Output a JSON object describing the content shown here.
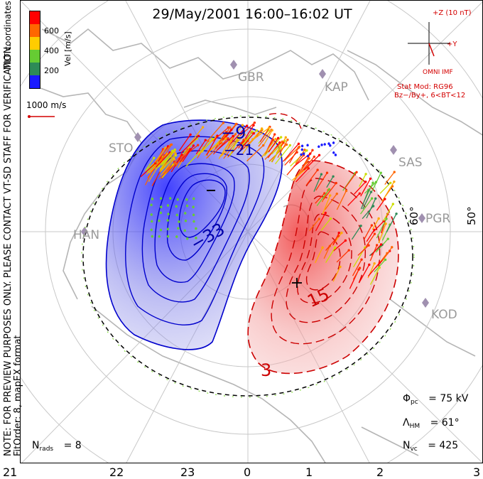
{
  "title": "29/May/2001  16:00–16:02  UT",
  "side_notes": {
    "line1": "NOTE: FOR PREVIEW PURPOSES ONLY. PLEASE CONTACT VT-SD STAFF FOR VERIFICATION.",
    "line2": "FitOrder: 8, mapEX format",
    "coords": "MLT coordinates"
  },
  "colorbar": {
    "label": "Vel [m/s]",
    "ticks": [
      "600",
      "400",
      "200"
    ],
    "colors": [
      "#1a1aff",
      "#2e8b57",
      "#66cc33",
      "#ffcc00",
      "#ff6600",
      "#ff0000"
    ]
  },
  "reference_vector": {
    "label": "1000 m/s",
    "color": "#d40000"
  },
  "imf": {
    "scale_label": "+Z (10 nT)",
    "y_label": "+Y",
    "source": "OMNI IMF",
    "model_line1": "Stat Mod: RG96",
    "model_line2": "Bz−/By+, 6<BT<12"
  },
  "stations": [
    "GBR",
    "KAP",
    "STO",
    "SAS",
    "HAN",
    "PGR",
    "KOD"
  ],
  "latitude_labels": [
    "60°",
    "50°"
  ],
  "mlt_labels": [
    "21",
    "22",
    "23",
    "0",
    "1",
    "2",
    "3"
  ],
  "contours": {
    "negative": [
      {
        "label": "−9"
      },
      {
        "label": "−21"
      },
      {
        "label": "−33"
      }
    ],
    "positive": [
      {
        "label": "15"
      },
      {
        "label": "3"
      }
    ],
    "min_marker": "–",
    "max_marker": "+"
  },
  "stats": {
    "pc_symbol": "Φ",
    "pc_sub": "pc",
    "pc_value": "=  75  kV",
    "hm_symbol": "Λ",
    "hm_sub": "HM",
    "hm_value": "=  61°",
    "nvc_symbol": "N",
    "nvc_sub": "vc",
    "nvc_value": "=  425",
    "nrads_symbol": "N",
    "nrads_sub": "rads",
    "nrads_value": "=  8"
  }
}
